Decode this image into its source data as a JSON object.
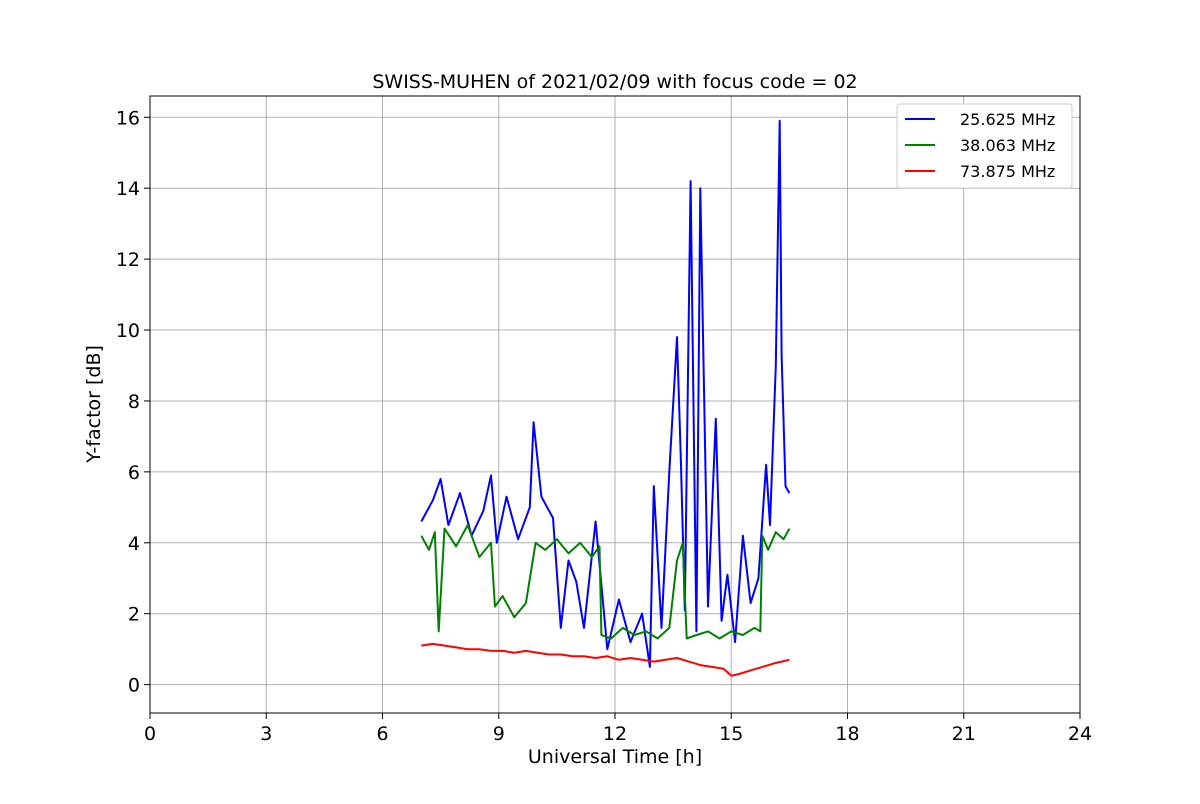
{
  "chart_data": {
    "type": "line",
    "title": "SWISS-MUHEN of 2021/02/09 with focus code = 02",
    "xlabel": "Universal Time [h]",
    "ylabel": "Y-factor [dB]",
    "xlim": [
      0,
      24
    ],
    "ylim": [
      -0.8,
      16.6
    ],
    "x_ticks": [
      0,
      3,
      6,
      9,
      12,
      15,
      18,
      21,
      24
    ],
    "y_ticks": [
      0,
      2,
      4,
      6,
      8,
      10,
      12,
      14,
      16
    ],
    "grid": true,
    "legend_position": "top-right",
    "series": [
      {
        "name": "25.625 MHz",
        "color": "#0000ff",
        "x": [
          7.0,
          7.3,
          7.5,
          7.7,
          8.0,
          8.3,
          8.6,
          8.8,
          8.95,
          9.2,
          9.5,
          9.8,
          9.9,
          10.1,
          10.4,
          10.6,
          10.8,
          11.0,
          11.2,
          11.5,
          11.8,
          12.1,
          12.4,
          12.7,
          12.9,
          13.0,
          13.2,
          13.4,
          13.6,
          13.7,
          13.8,
          13.95,
          14.1,
          14.2,
          14.4,
          14.6,
          14.75,
          14.9,
          15.1,
          15.3,
          15.5,
          15.7,
          15.9,
          16.0,
          16.15,
          16.25,
          16.3,
          16.4,
          16.5
        ],
        "y": [
          4.6,
          5.2,
          5.8,
          4.5,
          5.4,
          4.2,
          4.9,
          5.9,
          4.0,
          5.3,
          4.1,
          5.0,
          7.4,
          5.3,
          4.7,
          1.6,
          3.5,
          2.9,
          1.6,
          4.6,
          1.0,
          2.4,
          1.2,
          2.0,
          0.5,
          5.6,
          1.6,
          6.0,
          9.8,
          6.3,
          2.1,
          14.2,
          1.5,
          14.0,
          2.2,
          7.5,
          1.8,
          3.1,
          1.2,
          4.2,
          2.3,
          3.0,
          6.2,
          4.5,
          9.0,
          15.9,
          9.3,
          5.6,
          5.4
        ]
      },
      {
        "name": "38.063 MHz",
        "color": "#008000",
        "x": [
          7.0,
          7.2,
          7.35,
          7.45,
          7.6,
          7.9,
          8.2,
          8.5,
          8.8,
          8.9,
          9.1,
          9.4,
          9.7,
          9.95,
          10.2,
          10.5,
          10.8,
          11.1,
          11.4,
          11.6,
          11.65,
          11.9,
          12.2,
          12.5,
          12.8,
          13.1,
          13.4,
          13.6,
          13.75,
          13.85,
          14.1,
          14.4,
          14.7,
          15.0,
          15.3,
          15.6,
          15.75,
          15.8,
          15.95,
          16.15,
          16.35,
          16.5
        ],
        "y": [
          4.2,
          3.8,
          4.3,
          1.5,
          4.4,
          3.9,
          4.5,
          3.6,
          4.0,
          2.2,
          2.5,
          1.9,
          2.3,
          4.0,
          3.8,
          4.1,
          3.7,
          4.0,
          3.6,
          3.9,
          1.4,
          1.3,
          1.6,
          1.4,
          1.5,
          1.3,
          1.6,
          3.5,
          4.0,
          1.3,
          1.4,
          1.5,
          1.3,
          1.5,
          1.4,
          1.6,
          1.5,
          4.2,
          3.8,
          4.3,
          4.1,
          4.4
        ]
      },
      {
        "name": "73.875 MHz",
        "color": "#ff0000",
        "x": [
          7.0,
          7.3,
          7.6,
          7.9,
          8.2,
          8.5,
          8.8,
          9.1,
          9.4,
          9.7,
          10.0,
          10.3,
          10.6,
          10.9,
          11.2,
          11.5,
          11.8,
          12.1,
          12.4,
          12.7,
          13.0,
          13.3,
          13.6,
          13.9,
          14.2,
          14.5,
          14.8,
          15.0,
          15.2,
          15.5,
          15.8,
          16.1,
          16.3,
          16.5
        ],
        "y": [
          1.1,
          1.15,
          1.1,
          1.05,
          1.0,
          1.0,
          0.95,
          0.95,
          0.9,
          0.95,
          0.9,
          0.85,
          0.85,
          0.8,
          0.8,
          0.75,
          0.8,
          0.7,
          0.75,
          0.7,
          0.65,
          0.7,
          0.75,
          0.65,
          0.55,
          0.5,
          0.45,
          0.25,
          0.3,
          0.4,
          0.5,
          0.6,
          0.65,
          0.7
        ]
      }
    ]
  }
}
